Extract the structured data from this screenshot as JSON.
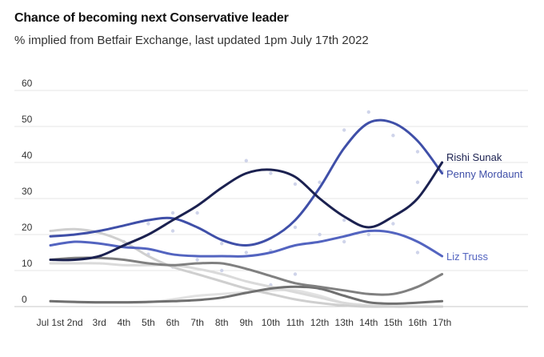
{
  "header": {
    "title": "Chance of becoming next Conservative leader",
    "subtitle": "% implied from Betfair Exchange, last updated 1pm July 17th 2022"
  },
  "chart_data": {
    "type": "line",
    "title": "Chance of becoming next Conservative leader",
    "subtitle": "% implied from Betfair Exchange, last updated 1pm July 17th 2022",
    "xlabel": "",
    "ylabel": "",
    "categories": [
      "Jul 1st",
      "2nd",
      "3rd",
      "4th",
      "5th",
      "6th",
      "7th",
      "8th",
      "9th",
      "10th",
      "11th",
      "12th",
      "13th",
      "14th",
      "15th",
      "16th",
      "17th"
    ],
    "yticks": [
      0,
      10,
      20,
      30,
      40,
      50,
      60
    ],
    "ylim": [
      0,
      60
    ],
    "grid": true,
    "legend": "inline labels at line ends",
    "series": [
      {
        "name": "Rishi Sunak",
        "color": "#1b2150",
        "label": true,
        "values": [
          13,
          13,
          14,
          17,
          20,
          24,
          28,
          33,
          37,
          38,
          36,
          30,
          25,
          22,
          25,
          30,
          40
        ]
      },
      {
        "name": "Penny Mordaunt",
        "color": "#3f4fa8",
        "label": true,
        "values": [
          19.5,
          20,
          21,
          22.5,
          24,
          24.5,
          22,
          18.5,
          17,
          19,
          24,
          33,
          44,
          51,
          51,
          46,
          37
        ]
      },
      {
        "name": "Liz Truss",
        "color": "#5364c0",
        "label": true,
        "values": [
          17,
          18,
          17.5,
          16.5,
          16,
          14.5,
          14,
          14,
          14,
          15,
          17,
          18,
          19.5,
          21,
          20.5,
          18,
          14
        ]
      },
      {
        "color": "#808080",
        "label": false,
        "values": [
          13,
          13.5,
          13.5,
          13,
          12,
          11.5,
          12,
          12,
          10.5,
          8.5,
          6.5,
          5.5,
          4.5,
          3.5,
          3.5,
          5.5,
          9
        ]
      },
      {
        "color": "#707070",
        "label": false,
        "values": [
          1.5,
          1.3,
          1.2,
          1.2,
          1.3,
          1.5,
          1.8,
          2.5,
          3.8,
          5,
          5.5,
          5,
          3,
          1.2,
          0.8,
          1.1,
          1.5
        ]
      },
      {
        "color": "#cfcfcf",
        "label": false,
        "values": [
          21,
          21.5,
          20.5,
          18,
          14,
          11,
          9,
          7,
          5,
          3.5,
          2,
          1,
          0.3,
          0,
          0,
          0,
          0
        ]
      },
      {
        "color": "#dadada",
        "label": false,
        "values": [
          12,
          12,
          12,
          11.5,
          11.5,
          11.5,
          10.5,
          9,
          7,
          5.5,
          4,
          2.5,
          1,
          0.3,
          0,
          0,
          0
        ]
      },
      {
        "color": "#e2e2e2",
        "label": false,
        "values": [
          1.5,
          1.2,
          1,
          1,
          1.2,
          2,
          3,
          3.5,
          4,
          4.5,
          4.5,
          3,
          1,
          0.3,
          0,
          0,
          0
        ]
      }
    ],
    "points": [
      {
        "x": "9th",
        "y": 40.5
      },
      {
        "x": "10th",
        "y": 37
      },
      {
        "x": "11th",
        "y": 34
      },
      {
        "x": "12th",
        "y": 34.5
      },
      {
        "x": "13th",
        "y": 49
      },
      {
        "x": "14th",
        "y": 54
      },
      {
        "x": "15th",
        "y": 47.5
      },
      {
        "x": "16th",
        "y": 43
      },
      {
        "x": "16th",
        "y": 34.5
      },
      {
        "x": "13th",
        "y": 24
      },
      {
        "x": "14th",
        "y": 20
      },
      {
        "x": "15th",
        "y": 23
      },
      {
        "x": "11th",
        "y": 22
      },
      {
        "x": "5th",
        "y": 23
      },
      {
        "x": "6th",
        "y": 26
      },
      {
        "x": "7th",
        "y": 26
      },
      {
        "x": "6th",
        "y": 21
      },
      {
        "x": "8th",
        "y": 17.5
      },
      {
        "x": "9th",
        "y": 15
      },
      {
        "x": "10th",
        "y": 15.5
      },
      {
        "x": "12th",
        "y": 20
      },
      {
        "x": "13th",
        "y": 18
      },
      {
        "x": "4th",
        "y": 18
      },
      {
        "x": "5th",
        "y": 14.5
      },
      {
        "x": "6th",
        "y": 11
      },
      {
        "x": "7th",
        "y": 13
      },
      {
        "x": "8th",
        "y": 10
      },
      {
        "x": "10th",
        "y": 6
      },
      {
        "x": "11th",
        "y": 9
      },
      {
        "x": "12th",
        "y": 5
      },
      {
        "x": "16th",
        "y": 15
      },
      {
        "x": "17th",
        "y": 37.5
      }
    ]
  }
}
